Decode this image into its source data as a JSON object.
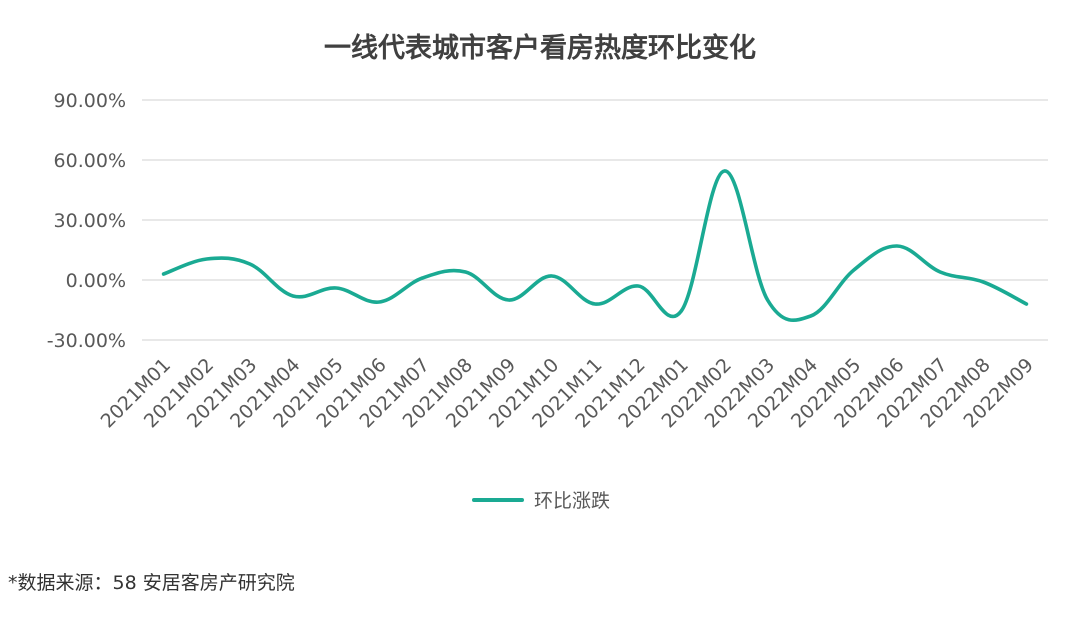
{
  "source_note": "*数据来源：58 安居客房产研究院",
  "chart_data": {
    "type": "line",
    "title": "一线代表城市客户看房热度环比变化",
    "xlabel": "",
    "ylabel": "",
    "categories": [
      "2021M01",
      "2021M02",
      "2021M03",
      "2021M04",
      "2021M05",
      "2021M06",
      "2021M07",
      "2021M08",
      "2021M09",
      "2021M10",
      "2021M11",
      "2021M12",
      "2022M01",
      "2022M02",
      "2022M03",
      "2022M04",
      "2022M05",
      "2022M06",
      "2022M07",
      "2022M08",
      "2022M09"
    ],
    "series": [
      {
        "name": "环比涨跌",
        "color": "#1aaa93",
        "values": [
          3.0,
          10.5,
          8.0,
          -8.0,
          -4.0,
          -11.0,
          1.0,
          4.0,
          -10.0,
          2.0,
          -12.0,
          -3.0,
          -15.5,
          54.5,
          -10.0,
          -18.0,
          5.0,
          17.0,
          4.0,
          -1.0,
          -12.0
        ]
      }
    ],
    "ylim": [
      -30,
      90
    ],
    "yticks": [
      90,
      60,
      30,
      0,
      -30
    ],
    "ytick_labels": [
      "90.00%",
      "60.00%",
      "30.00%",
      "0.00%",
      "-30.00%"
    ],
    "grid": true,
    "legend_position": "bottom"
  }
}
